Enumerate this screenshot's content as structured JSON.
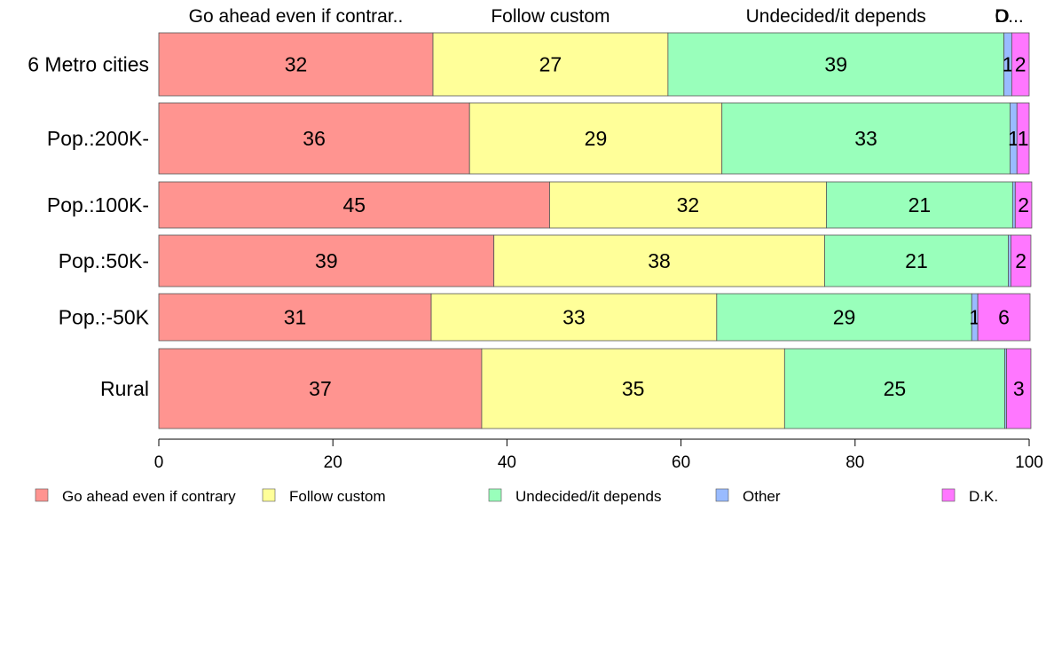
{
  "chart_data": {
    "type": "bar",
    "orientation": "horizontal",
    "stacked": true,
    "title": "",
    "xlabel": "",
    "ylabel": "",
    "xlim": [
      0,
      100
    ],
    "x_ticks": [
      "0",
      "20",
      "40",
      "60",
      "80",
      "100"
    ],
    "top_labels": [
      "Go ahead even if contrar..",
      "Follow custom",
      "Undecided/it depends",
      "O",
      "D..."
    ],
    "categories": [
      "6 Metro cities",
      "Pop.:200K-",
      "Pop.:100K-",
      "Pop.:50K-",
      "Pop.:-50K",
      "Rural"
    ],
    "series": [
      {
        "name": "Go ahead even if contrary",
        "color": "#ff9490",
        "values": [
          31.5,
          35.7,
          44.9,
          38.5,
          31.3,
          37.1
        ],
        "labels": [
          "32",
          "36",
          "45",
          "39",
          "31",
          "37"
        ]
      },
      {
        "name": "Follow custom",
        "color": "#ffff99",
        "values": [
          27.0,
          29.0,
          31.8,
          38.0,
          32.8,
          34.8
        ],
        "labels": [
          "27",
          "29",
          "32",
          "38",
          "33",
          "35"
        ]
      },
      {
        "name": "Undecided/it depends",
        "color": "#99ffbb",
        "values": [
          38.6,
          33.1,
          21.4,
          21.1,
          29.3,
          25.3
        ],
        "labels": [
          "39",
          "33",
          "21",
          "21",
          "29",
          "25"
        ]
      },
      {
        "name": "Other",
        "color": "#99bbff",
        "values": [
          0.9,
          0.8,
          0.3,
          0.3,
          0.7,
          0.2
        ],
        "labels": [
          "1",
          "1",
          "",
          "",
          "1",
          ""
        ]
      },
      {
        "name": "D.K.",
        "color": "#ff77ff",
        "values": [
          2.0,
          1.4,
          1.9,
          2.3,
          6.0,
          2.8
        ],
        "labels": [
          "2",
          "1",
          "2",
          "2",
          "6",
          "3"
        ]
      }
    ],
    "legend": {
      "position": "bottom",
      "entries": [
        "Go ahead even if contrary",
        "Follow custom",
        "Undecided/it depends",
        "Other",
        "D.K."
      ]
    },
    "grid": false
  }
}
